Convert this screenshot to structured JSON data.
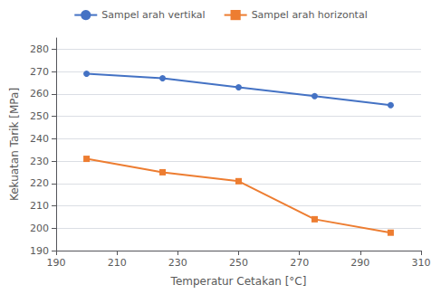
{
  "chart_data": {
    "type": "line",
    "x": [
      200,
      225,
      250,
      275,
      300
    ],
    "series": [
      {
        "name": "Sampel arah vertikal",
        "color": "#4472C4",
        "marker": "circle",
        "values": [
          269,
          267,
          263,
          259,
          255
        ]
      },
      {
        "name": "Sampel arah horizontal",
        "color": "#ED7D31",
        "marker": "square",
        "values": [
          231,
          225,
          221,
          204,
          198
        ]
      }
    ],
    "xlabel": "Temperatur Cetakan [°C]",
    "ylabel": "Kekuatan Tarik [MPa]",
    "xlim": [
      190,
      310
    ],
    "ylim": [
      190,
      285
    ],
    "xticks": [
      190,
      210,
      230,
      250,
      270,
      290,
      310
    ],
    "yticks": [
      190,
      200,
      210,
      220,
      230,
      240,
      250,
      260,
      270,
      280
    ],
    "grid": true,
    "legend": "top"
  }
}
